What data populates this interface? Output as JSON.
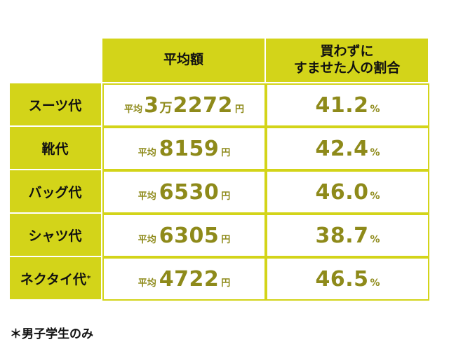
{
  "table": {
    "header": {
      "average": "平均額",
      "rate_line1": "買わずに",
      "rate_line2": "すませた人の割合"
    },
    "rows": [
      {
        "label": "スーツ代",
        "note_mark": "",
        "avg_prefix": "平均",
        "avg_part1": "3",
        "avg_man": "万",
        "avg_part2": "2272",
        "avg_unit": "円",
        "rate": "41.2",
        "rate_unit": "%"
      },
      {
        "label": "靴代",
        "note_mark": "",
        "avg_prefix": "平均",
        "avg_part1": "",
        "avg_man": "",
        "avg_part2": "8159",
        "avg_unit": "円",
        "rate": "42.4",
        "rate_unit": "%"
      },
      {
        "label": "バッグ代",
        "note_mark": "",
        "avg_prefix": "平均",
        "avg_part1": "",
        "avg_man": "",
        "avg_part2": "6530",
        "avg_unit": "円",
        "rate": "46.0",
        "rate_unit": "%"
      },
      {
        "label": "シャツ代",
        "note_mark": "",
        "avg_prefix": "平均",
        "avg_part1": "",
        "avg_man": "",
        "avg_part2": "6305",
        "avg_unit": "円",
        "rate": "38.7",
        "rate_unit": "%"
      },
      {
        "label": "ネクタイ代",
        "note_mark": "*",
        "avg_prefix": "平均",
        "avg_part1": "",
        "avg_man": "",
        "avg_part2": "4722",
        "avg_unit": "円",
        "rate": "46.5",
        "rate_unit": "%"
      }
    ]
  },
  "footnote": "＊男子学生のみ",
  "colors": {
    "header_bg": "#d3d419",
    "value_text": "#8e8a1a",
    "cell_border": "#d3d419"
  }
}
